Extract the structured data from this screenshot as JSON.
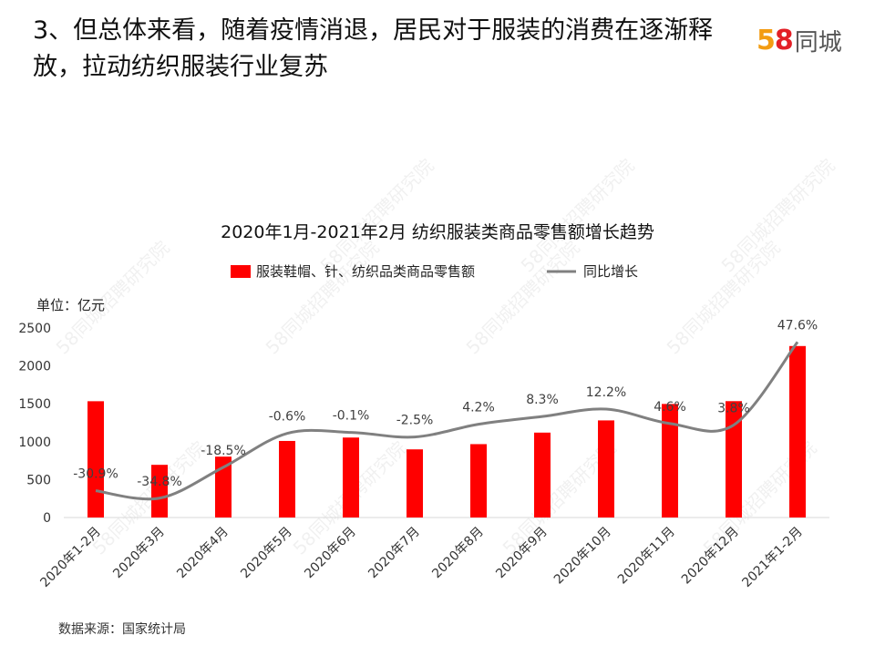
{
  "slide": {
    "title": "3、但总体来看，随着疫情消退，居民对于服装的消费在逐渐释放，拉动纺织服装行业复苏",
    "source": "数据来源：国家统计局"
  },
  "logo": {
    "digit5": "5",
    "digit8": "8",
    "text": "同城"
  },
  "watermark": "58同城招聘研究院",
  "colors": {
    "bar": "#ff0000",
    "line": "#808080",
    "axis": "#d9d9d9"
  },
  "chart_data": {
    "type": "bar",
    "title": "2020年1月-2021年2月 纺织服装类商品零售额增长趋势",
    "unit_label": "单位：亿元",
    "categories": [
      "2020年1-2月",
      "2020年3月",
      "2020年4月",
      "2020年5月",
      "2020年6月",
      "2020年7月",
      "2020年8月",
      "2020年9月",
      "2020年10月",
      "2020年11月",
      "2020年12月",
      "2021年1-2月"
    ],
    "series": [
      {
        "name": "服装鞋帽、针、纺织品类商品零售额",
        "kind": "bar",
        "axis": "left",
        "values": [
          1534,
          695,
          803,
          1010,
          1055,
          899,
          968,
          1120,
          1281,
          1498,
          1535,
          2262
        ]
      },
      {
        "name": "同比增长",
        "kind": "line",
        "axis": "right",
        "unit": "%",
        "values": [
          -30.9,
          -34.8,
          -18.5,
          -0.6,
          -0.1,
          -2.5,
          4.2,
          8.3,
          12.2,
          4.6,
          3.8,
          47.6
        ],
        "labels": [
          "-30.9%",
          "-34.8%",
          "-18.5%",
          "-0.6%",
          "-0.1%",
          "-2.5%",
          "4.2%",
          "8.3%",
          "12.2%",
          "4.6%",
          "3.8%",
          "47.6%"
        ]
      }
    ],
    "y_ticks": [
      "0",
      "500",
      "1000",
      "1500",
      "2000",
      "2500"
    ],
    "ylim": [
      0,
      2500
    ],
    "legend_position": "top-center"
  }
}
